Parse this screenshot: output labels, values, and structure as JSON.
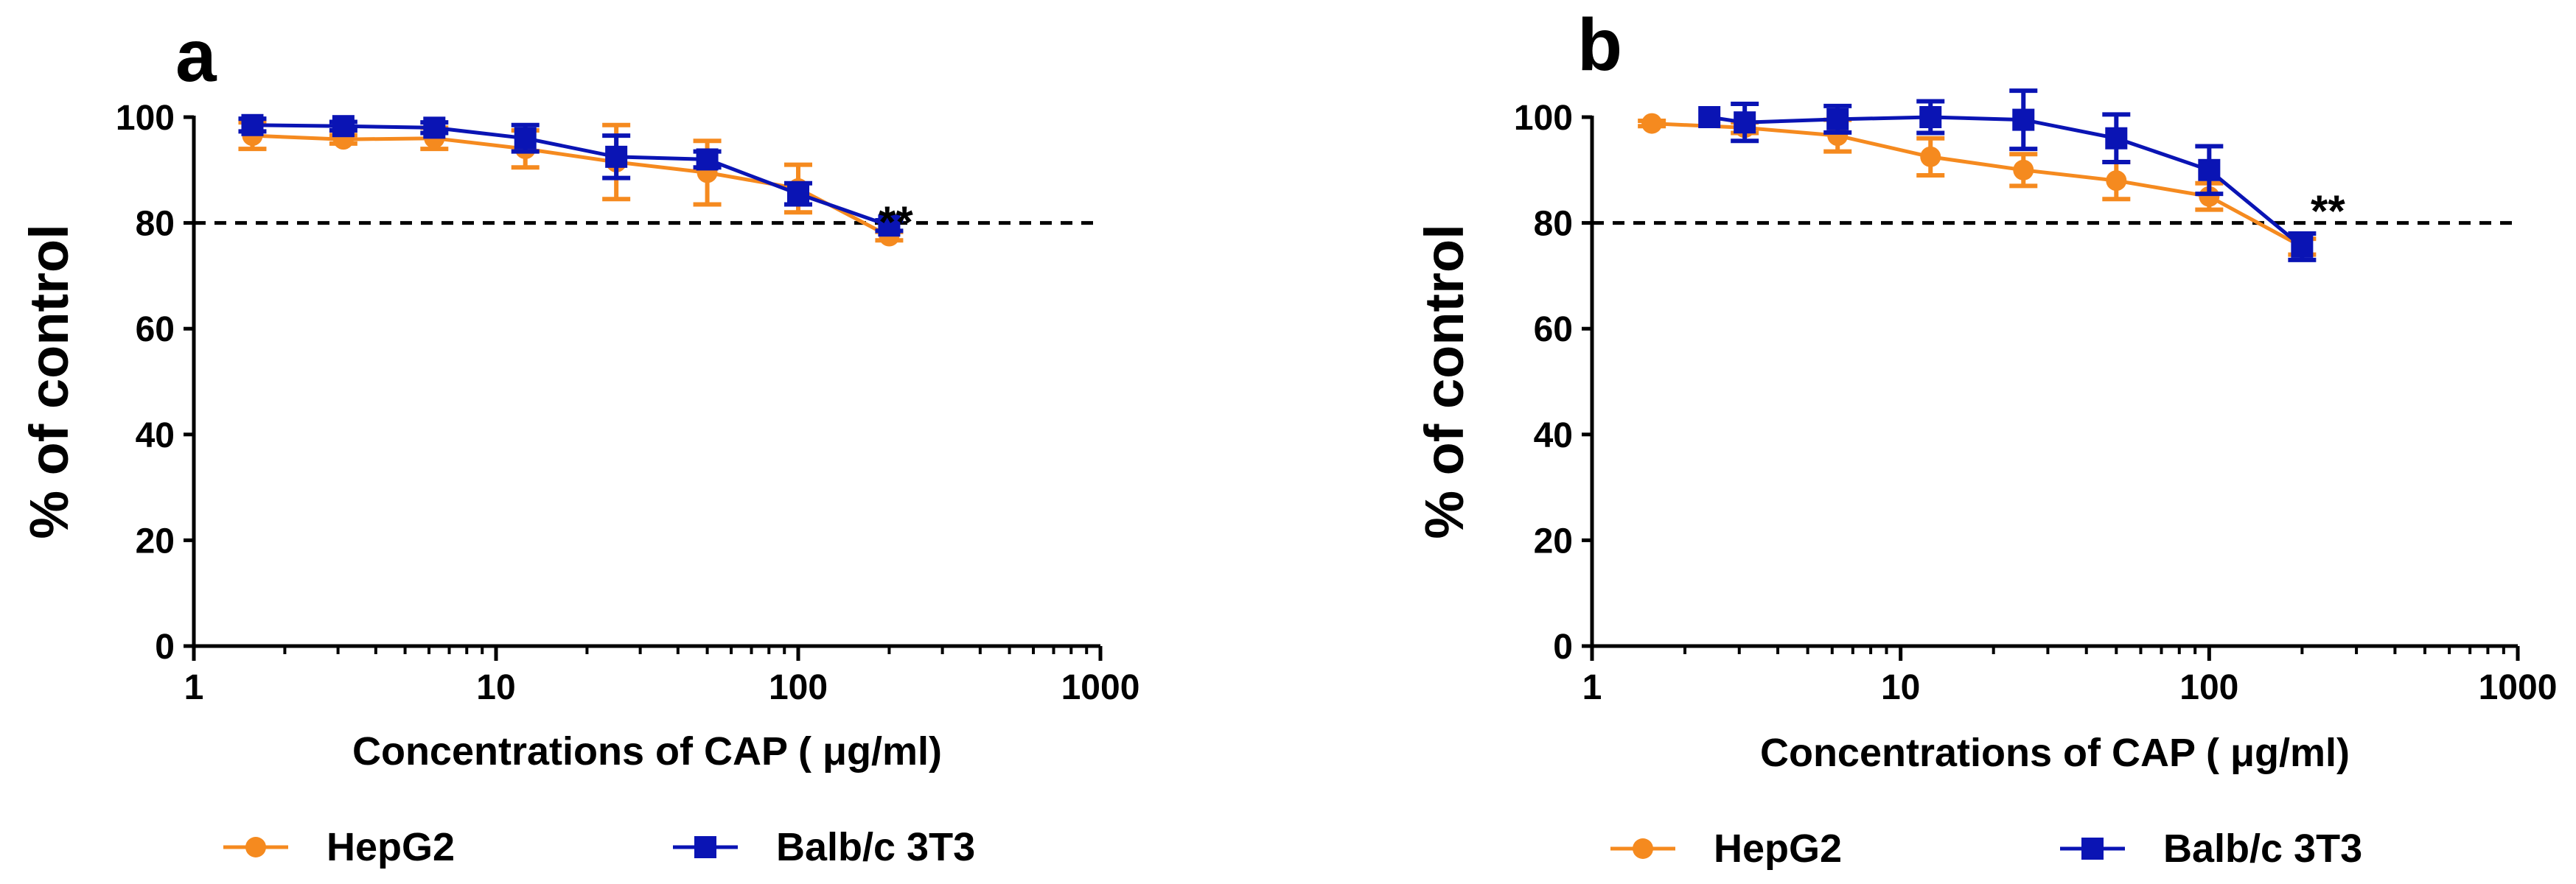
{
  "colors": {
    "hepg2": "#F58A1F",
    "balb": "#0A14B4",
    "axis": "#000000"
  },
  "legend": [
    {
      "name": "HepG2",
      "marker": "circle"
    },
    {
      "name": "Balb/c 3T3",
      "marker": "square"
    }
  ],
  "chart_data": [
    {
      "type": "line",
      "panel_label": "a",
      "xlabel": "Concentrations of CAP ( μg/ml)",
      "ylabel": "% of control",
      "xscale": "log",
      "xlim": [
        1,
        1000
      ],
      "ylim": [
        0,
        100
      ],
      "xticks": [
        "1",
        "10",
        "100",
        "1000"
      ],
      "yticks": [
        "0",
        "20",
        "40",
        "60",
        "80",
        "100"
      ],
      "reference_line": 80,
      "annotation": "**",
      "x": [
        1.5625,
        3.125,
        6.25,
        12.5,
        25,
        50,
        100,
        200
      ],
      "series": [
        {
          "name": "HepG2",
          "values": [
            96.5,
            95.8,
            96.0,
            94.0,
            91.5,
            89.5,
            86.5,
            77.5
          ],
          "errors": [
            2.5,
            0.8,
            2.0,
            3.5,
            7.0,
            6.0,
            4.5,
            0.8
          ]
        },
        {
          "name": "Balb/c 3T3",
          "values": [
            98.5,
            98.3,
            98.0,
            96.0,
            92.5,
            92.0,
            85.5,
            79.5
          ],
          "errors": [
            1.2,
            0.8,
            1.0,
            2.5,
            4.0,
            1.5,
            2.0,
            1.0
          ]
        }
      ]
    },
    {
      "type": "line",
      "panel_label": "b",
      "xlabel": "Concentrations of CAP ( μg/ml)",
      "ylabel": "% of control",
      "xscale": "log",
      "xlim": [
        1,
        1000
      ],
      "ylim": [
        0,
        100
      ],
      "xticks": [
        "1",
        "10",
        "100",
        "1000"
      ],
      "yticks": [
        "0",
        "20",
        "40",
        "60",
        "80",
        "100"
      ],
      "reference_line": 80,
      "annotation": "**",
      "series": [
        {
          "name": "HepG2",
          "x": [
            1.5625,
            3.125,
            6.25,
            12.5,
            25,
            50,
            100,
            200
          ],
          "values": [
            98.8,
            98.0,
            96.5,
            92.5,
            90.0,
            88.0,
            85.0,
            75.5
          ],
          "errors": [
            0.5,
            1.0,
            3.0,
            3.5,
            3.0,
            3.5,
            2.5,
            1.5
          ]
        },
        {
          "name": "Balb/c 3T3",
          "x": [
            2.4,
            3.125,
            6.25,
            12.5,
            25,
            50,
            100,
            200
          ],
          "values": [
            100.0,
            99.0,
            99.6,
            100.0,
            99.5,
            96.0,
            90.0,
            75.5
          ],
          "errors": [
            0.0,
            3.5,
            2.5,
            3.0,
            5.5,
            4.5,
            4.5,
            2.5
          ]
        }
      ]
    }
  ]
}
